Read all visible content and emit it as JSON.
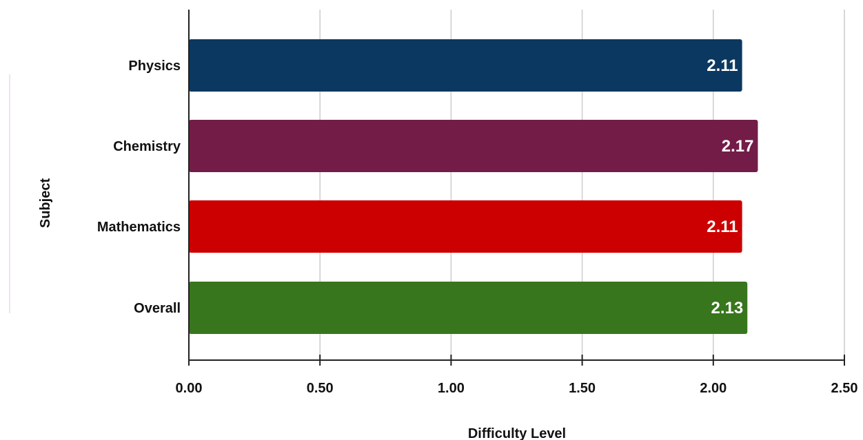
{
  "chart_data": {
    "type": "bar",
    "orientation": "horizontal",
    "categories": [
      "Physics",
      "Chemistry",
      "Mathematics",
      "Overall"
    ],
    "values": [
      2.11,
      2.17,
      2.11,
      2.13
    ],
    "data_labels": [
      "2.11",
      "2.17",
      "2.11",
      "2.13"
    ],
    "bar_colors": [
      "#0b3861",
      "#731c47",
      "#cc0000",
      "#38761d"
    ],
    "xlabel": "Difficulty Level",
    "ylabel": "Subject",
    "xlim": [
      0,
      2.5
    ],
    "x_ticks": [
      0,
      0.5,
      1,
      1.5,
      2,
      2.5
    ],
    "x_tick_labels": [
      "0.00",
      "0.50",
      "1.00",
      "1.50",
      "2.00",
      "2.50"
    ],
    "grid": "vertical",
    "legend": "none"
  }
}
